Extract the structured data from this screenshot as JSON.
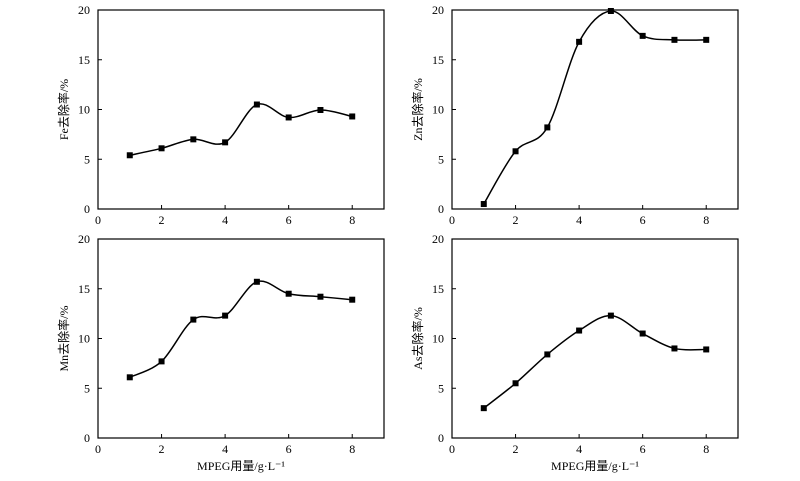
{
  "chart_data": [
    {
      "type": "line",
      "ylabel": "Fe去除率/%",
      "xlabel": "",
      "x": [
        1,
        2,
        3,
        4,
        5,
        6,
        7,
        8
      ],
      "values": [
        5.4,
        6.1,
        7.0,
        6.7,
        10.5,
        9.2,
        9.95,
        9.3
      ],
      "xlim": [
        0,
        9
      ],
      "ylim": [
        0,
        20
      ],
      "xticks": [
        "0",
        "2",
        "4",
        "6",
        "8"
      ],
      "yticks": [
        "0",
        "5",
        "10",
        "15",
        "20"
      ],
      "grid": false,
      "marker": "square",
      "color": "#000000"
    },
    {
      "type": "line",
      "ylabel": "Zn去除率/%",
      "xlabel": "",
      "x": [
        1,
        2,
        3,
        4,
        5,
        6,
        7,
        8
      ],
      "values": [
        0.5,
        5.8,
        8.2,
        16.8,
        19.9,
        17.4,
        17.0,
        17.0
      ],
      "xlim": [
        0,
        9
      ],
      "ylim": [
        0,
        20
      ],
      "xticks": [
        "0",
        "2",
        "4",
        "6",
        "8"
      ],
      "yticks": [
        "0",
        "5",
        "10",
        "15",
        "20"
      ],
      "grid": false,
      "marker": "square",
      "color": "#000000"
    },
    {
      "type": "line",
      "ylabel": "Mn去除率/%",
      "xlabel": "MPEG用量/g·L⁻¹",
      "x": [
        1,
        2,
        3,
        4,
        5,
        6,
        7,
        8
      ],
      "values": [
        6.1,
        7.7,
        11.9,
        12.3,
        15.7,
        14.5,
        14.2,
        13.9
      ],
      "xlim": [
        0,
        9
      ],
      "ylim": [
        0,
        20
      ],
      "xticks": [
        "0",
        "2",
        "4",
        "6",
        "8"
      ],
      "yticks": [
        "0",
        "5",
        "10",
        "15",
        "20"
      ],
      "grid": false,
      "marker": "square",
      "color": "#000000"
    },
    {
      "type": "line",
      "ylabel": "As去除率/%",
      "xlabel": "MPEG用量/g·L⁻¹",
      "x": [
        1,
        2,
        3,
        4,
        5,
        6,
        7,
        8
      ],
      "values": [
        3.0,
        5.5,
        8.4,
        10.8,
        12.3,
        10.5,
        9.0,
        8.9
      ],
      "xlim": [
        0,
        9
      ],
      "ylim": [
        0,
        20
      ],
      "xticks": [
        "0",
        "2",
        "4",
        "6",
        "8"
      ],
      "yticks": [
        "0",
        "5",
        "10",
        "15",
        "20"
      ],
      "grid": false,
      "marker": "square",
      "color": "#000000"
    }
  ]
}
